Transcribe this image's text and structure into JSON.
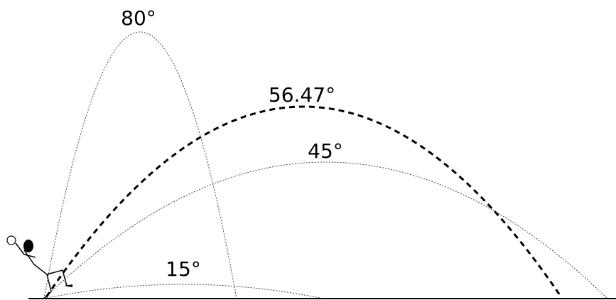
{
  "labels": {
    "angle_80": "80°",
    "angle_56": "56.47°",
    "angle_45": "45°",
    "angle_15": "15°"
  }
}
